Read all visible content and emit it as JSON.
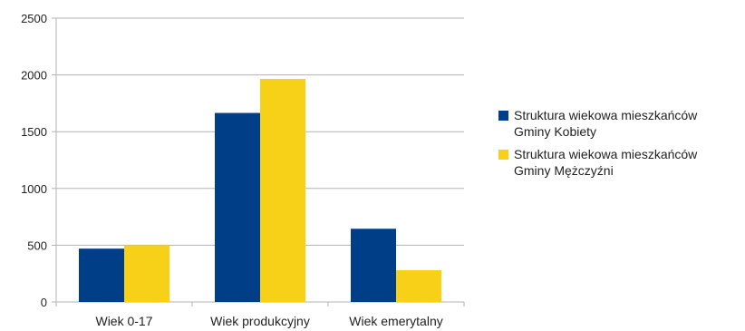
{
  "chart_data": {
    "type": "bar",
    "categories": [
      "Wiek 0-17",
      "Wiek produkcyjny",
      "Wiek emerytalny"
    ],
    "series": [
      {
        "name": "Struktura wiekowa mieszkańców\nGminy Kobiety",
        "color": "#003f87",
        "values": [
          470,
          1665,
          645
        ]
      },
      {
        "name": "Struktura wiekowa mieszkańców\nGminy Mężczyźni",
        "color": "#f7d117",
        "values": [
          500,
          1965,
          280
        ]
      }
    ],
    "ylim": [
      0,
      2500
    ],
    "yticks": [
      0,
      500,
      1000,
      1500,
      2000,
      2500
    ],
    "grid": true,
    "legend_position": "right"
  }
}
